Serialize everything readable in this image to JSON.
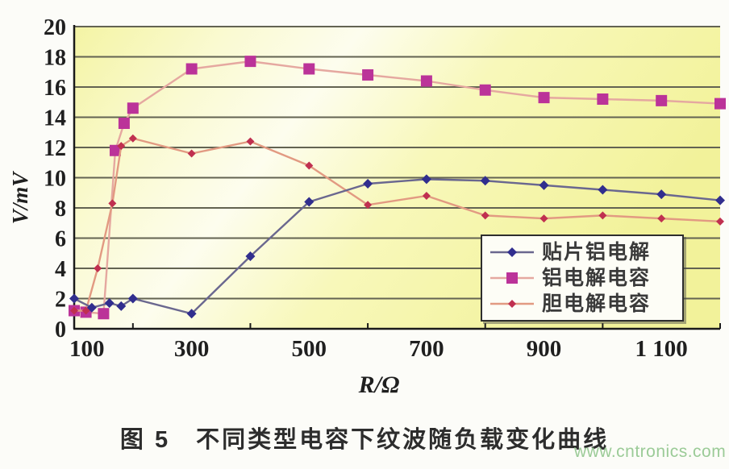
{
  "figure": {
    "caption": "图 5　不同类型电容下纹波随负载变化曲线",
    "watermark": "www.cntronics.com"
  },
  "palette": {
    "plot_bg_yellow": "#f2f29a",
    "plot_bg_light": "#fdfdec",
    "gridline": "#636352",
    "axis": "#1a1a1a",
    "legend_bg": "#fdfdf6",
    "legend_border": "#2e2e2e",
    "caption_text": "#2d2d2d",
    "watermark_green": "#9bcb97"
  },
  "chart_data": {
    "type": "line",
    "title": "",
    "xlabel": "R/Ω",
    "ylabel": "V/mV",
    "xlim": [
      100,
      1200
    ],
    "ylim": [
      0,
      20
    ],
    "x_tick_labels": [
      "100",
      "300",
      "500",
      "700",
      "900",
      "1 100"
    ],
    "x_tick_values": [
      100,
      300,
      500,
      700,
      900,
      1100
    ],
    "x_minor_ticks": [
      200,
      400,
      600,
      800,
      1000,
      1200
    ],
    "y_ticks": [
      0,
      2,
      4,
      6,
      8,
      10,
      12,
      14,
      16,
      18,
      20
    ],
    "grid": "horizontal",
    "legend_position": "inside-lower-right",
    "series": [
      {
        "name": "贴片铝电解",
        "marker": "diamond",
        "marker_color": "#312e8e",
        "line_color": "#6a678f",
        "marker_size": 6,
        "points": [
          [
            100,
            2.0
          ],
          [
            130,
            1.4
          ],
          [
            160,
            1.7
          ],
          [
            180,
            1.5
          ],
          [
            200,
            2.0
          ],
          [
            300,
            1.0
          ],
          [
            400,
            4.8
          ],
          [
            500,
            8.4
          ],
          [
            600,
            9.6
          ],
          [
            700,
            9.9
          ],
          [
            800,
            9.8
          ],
          [
            900,
            9.5
          ],
          [
            1000,
            9.2
          ],
          [
            1100,
            8.9
          ],
          [
            1200,
            8.5
          ]
        ]
      },
      {
        "name": "铝电解电容",
        "marker": "square",
        "marker_color": "#bb3399",
        "line_color": "#e5a8a0",
        "marker_size": 7,
        "points": [
          [
            100,
            1.2
          ],
          [
            120,
            1.1
          ],
          [
            150,
            1.0
          ],
          [
            170,
            11.8
          ],
          [
            185,
            13.6
          ],
          [
            200,
            14.6
          ],
          [
            300,
            17.2
          ],
          [
            400,
            17.7
          ],
          [
            500,
            17.2
          ],
          [
            600,
            16.8
          ],
          [
            700,
            16.4
          ],
          [
            800,
            15.8
          ],
          [
            900,
            15.3
          ],
          [
            1000,
            15.2
          ],
          [
            1100,
            15.1
          ],
          [
            1200,
            14.9
          ]
        ]
      },
      {
        "name": "胆电解电容",
        "marker": "diamond",
        "marker_color": "#c03050",
        "line_color": "#e29a82",
        "marker_size": 5,
        "points": [
          [
            100,
            1.2
          ],
          [
            120,
            1.2
          ],
          [
            140,
            4.0
          ],
          [
            165,
            8.3
          ],
          [
            180,
            12.1
          ],
          [
            200,
            12.6
          ],
          [
            300,
            11.6
          ],
          [
            400,
            12.4
          ],
          [
            500,
            10.8
          ],
          [
            600,
            8.2
          ],
          [
            700,
            8.8
          ],
          [
            800,
            7.5
          ],
          [
            900,
            7.3
          ],
          [
            1000,
            7.5
          ],
          [
            1100,
            7.3
          ],
          [
            1200,
            7.1
          ]
        ]
      }
    ]
  }
}
